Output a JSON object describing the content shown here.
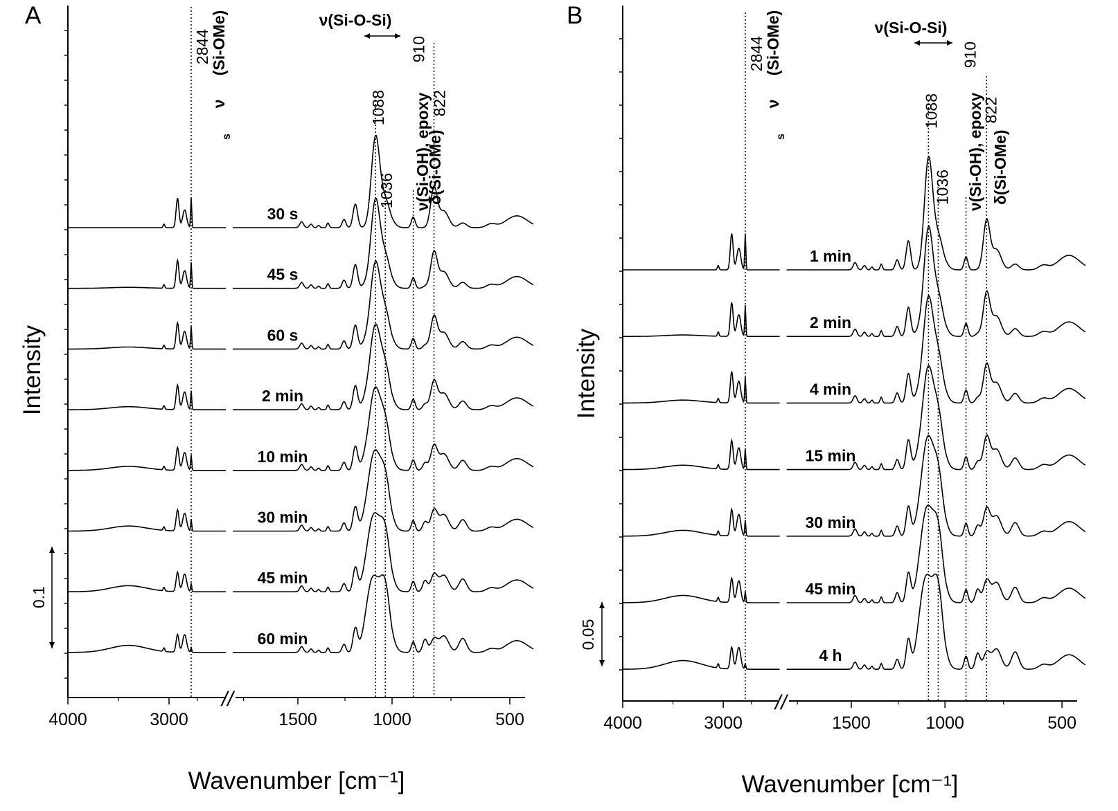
{
  "chart_data": [
    {
      "panel": "A",
      "type": "line",
      "xlabel": "Wavenumber [cm⁻¹]",
      "ylabel": "Intensity",
      "x_ticks": [
        "4000",
        "3000",
        "1500",
        "1000",
        "500"
      ],
      "axis_break": "//",
      "scale_bar": "0.1",
      "series": [
        {
          "name": "30 s"
        },
        {
          "name": "45 s"
        },
        {
          "name": "60 s"
        },
        {
          "name": "2 min"
        },
        {
          "name": "10 min"
        },
        {
          "name": "30 min"
        },
        {
          "name": "45 min"
        },
        {
          "name": "60 min"
        }
      ],
      "annotations": {
        "peaks": [
          "2844",
          "1088",
          "1036",
          "910",
          "822"
        ],
        "assign_sioMe_s": "(Si-OMe)",
        "assign_siosi": "ν(Si-O-Si)",
        "assign_sioh": "ν(Si-OH), epoxy",
        "assign_sioMe_d": "δ(Si-OMe)"
      }
    },
    {
      "panel": "B",
      "type": "line",
      "xlabel": "Wavenumber [cm⁻¹]",
      "ylabel": "Intensity",
      "x_ticks": [
        "4000",
        "3000",
        "1500",
        "1000",
        "500"
      ],
      "axis_break": "//",
      "scale_bar": "0.05",
      "series": [
        {
          "name": "1 min"
        },
        {
          "name": "2 min"
        },
        {
          "name": "4 min"
        },
        {
          "name": "15 min"
        },
        {
          "name": "30 min"
        },
        {
          "name": "45 min"
        },
        {
          "name": "4 h"
        }
      ],
      "annotations": {
        "peaks": [
          "2844",
          "1088",
          "1036",
          "910",
          "822"
        ],
        "assign_sioMe_s": "(Si-OMe)",
        "assign_siosi": "ν(Si-O-Si)",
        "assign_sioh": "ν(Si-OH), epoxy",
        "assign_sioMe_d": "δ(Si-OMe)"
      }
    }
  ]
}
